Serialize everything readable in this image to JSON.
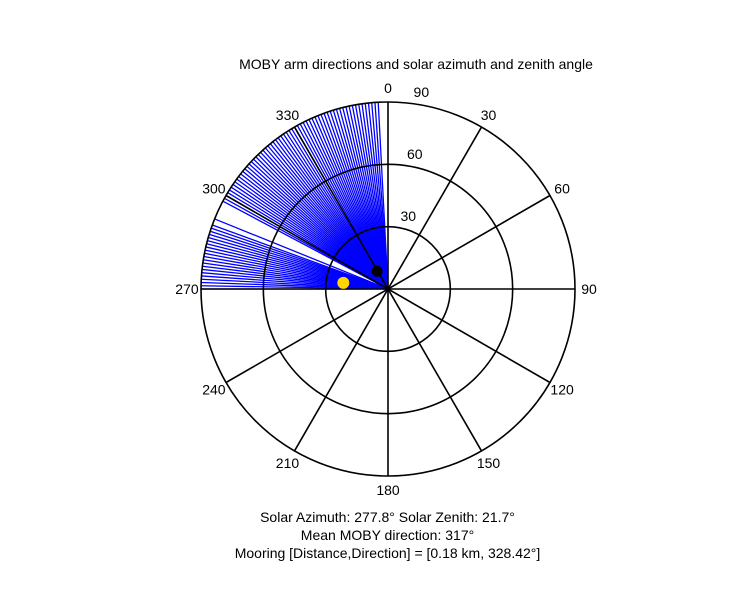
{
  "chart_data": {
    "type": "polar",
    "title": "MOBY arm directions and solar azimuth and zenith angle",
    "direction": "clockwise",
    "zero_at": "top",
    "angle_ticks": [
      "0",
      "30",
      "60",
      "90",
      "120",
      "150",
      "180",
      "210",
      "240",
      "270",
      "300",
      "330"
    ],
    "radial_ticks": [
      "30",
      "60",
      "90"
    ],
    "radial_max": 90,
    "arm_color": "#0000ff",
    "arm_directions_deg": [
      270,
      271,
      272,
      273,
      274,
      275,
      276,
      277,
      278,
      279,
      280,
      281,
      282,
      283,
      284,
      285,
      286,
      287,
      288,
      289,
      290,
      292,
      298,
      299,
      300,
      301,
      302,
      303,
      304,
      305,
      306,
      307,
      308,
      309,
      310,
      311,
      312,
      313,
      314,
      315,
      316,
      317,
      318,
      319,
      320,
      321,
      322,
      323,
      324,
      325,
      326,
      327,
      328,
      329,
      330,
      331,
      332,
      333,
      334,
      335,
      336,
      337,
      338,
      339,
      340,
      341,
      342,
      343,
      344,
      345,
      346,
      347,
      348,
      349,
      350,
      351,
      352,
      353,
      354,
      355,
      356,
      357
    ],
    "solar_position": {
      "azimuth": 277.8,
      "zenith": 21.7,
      "color": "#ffd700"
    },
    "mooring_position": {
      "direction": 328.42,
      "radius": 10,
      "color": "#000000"
    }
  },
  "caption": {
    "line1": "Solar Azimuth: 277.8°    Solar Zenith: 21.7°",
    "line2": "Mean MOBY direction: 317°",
    "line3": "Mooring [Distance,Direction] = [0.18 km, 328.42°]"
  }
}
